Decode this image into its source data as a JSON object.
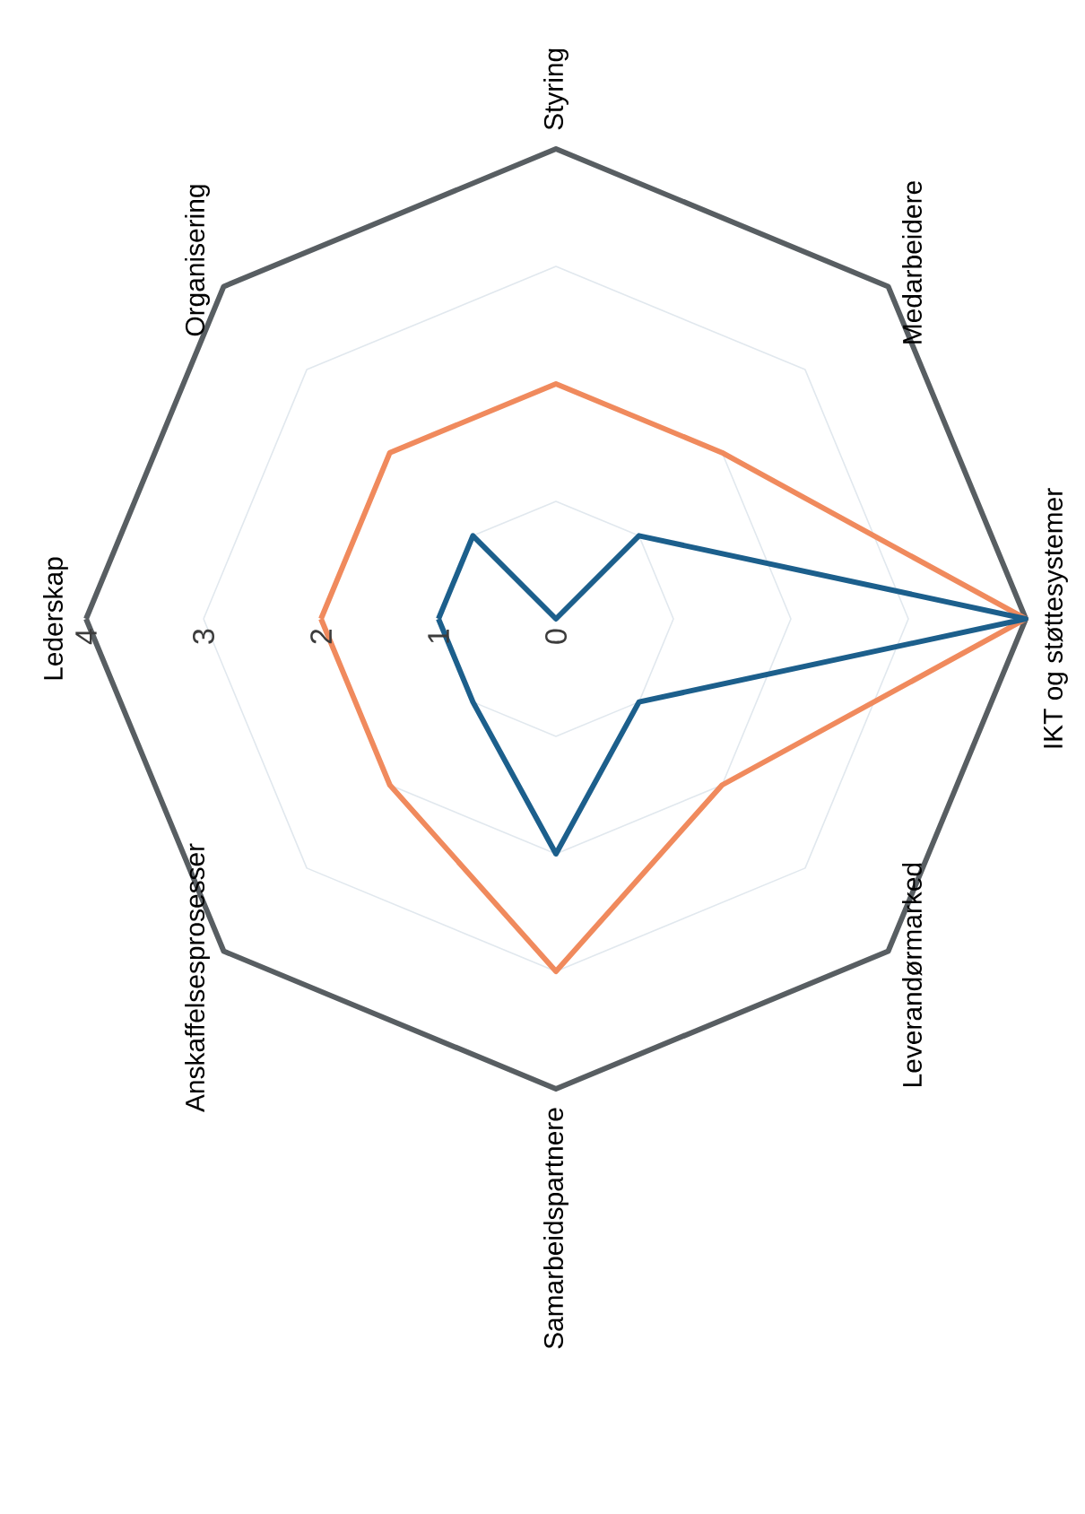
{
  "chart_data": {
    "type": "radar",
    "categories": [
      "Lederskap",
      "Organisering",
      "Styring",
      "Medarbeidere",
      "IKT og støttesystemer",
      "Leverandørmarked",
      "Samarbeidspartnere",
      "Anskaffelsesprosesser"
    ],
    "ylim": [
      0,
      4
    ],
    "yticks": [
      0,
      1,
      2,
      3,
      4
    ],
    "series": [
      {
        "color": "#f08a5d",
        "values": [
          2,
          2,
          2,
          2,
          4,
          2,
          3,
          2
        ]
      },
      {
        "color": "#1c5f8c",
        "values": [
          1,
          1,
          0,
          1,
          4,
          1,
          2,
          1
        ]
      }
    ]
  }
}
